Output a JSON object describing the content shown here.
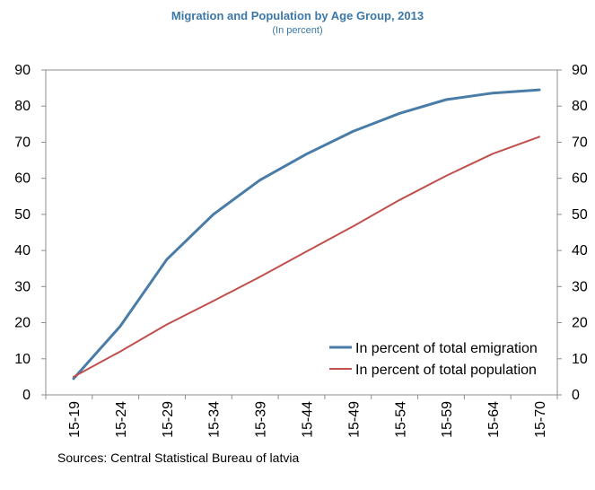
{
  "chart_data": {
    "type": "line",
    "title": "Migration and Population by Age Group, 2013",
    "subtitle": "(In percent)",
    "categories": [
      "15-19",
      "15-24",
      "15-29",
      "15-34",
      "15-39",
      "15-44",
      "15-49",
      "15-54",
      "15-59",
      "15-64",
      "15-70"
    ],
    "series": [
      {
        "name": "In percent of total emigration",
        "color": "#4a7ca8",
        "values": [
          4.5,
          19.0,
          37.5,
          50.0,
          59.5,
          66.7,
          73.0,
          78.0,
          81.8,
          83.6,
          84.5
        ]
      },
      {
        "name": "In percent of total population",
        "color": "#c0504d",
        "values": [
          5.0,
          12.0,
          19.5,
          26.0,
          32.7,
          39.7,
          46.7,
          54.0,
          60.7,
          66.8,
          71.5
        ]
      }
    ],
    "ylim": [
      0,
      90
    ],
    "yticks": [
      0,
      10,
      20,
      30,
      40,
      50,
      60,
      70,
      80,
      90
    ],
    "secondary_y": true,
    "grid": false,
    "legend": "bottom-right",
    "source": "Sources: Central Statistical Bureau of latvia"
  }
}
